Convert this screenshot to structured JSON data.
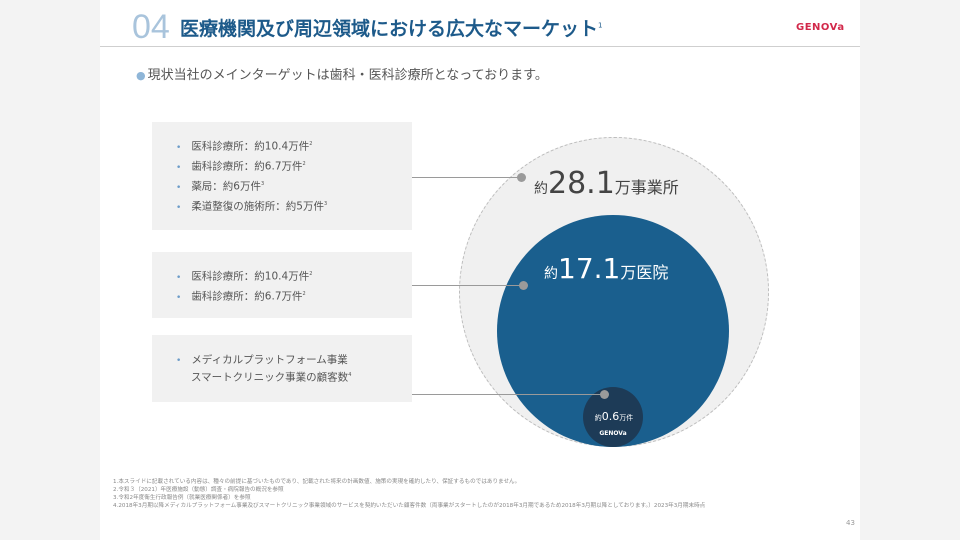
{
  "header": {
    "section_number": "04",
    "title": "医療機関及び周辺領域における広大なマーケット",
    "title_footnote": "1",
    "logo": "GENOVa"
  },
  "subtitle": "現状当社のメインターゲットは歯科・医科診療所となっております。",
  "boxes": [
    {
      "items": [
        {
          "text": "医科診療所：約10.4万件",
          "note": "2"
        },
        {
          "text": "歯科診療所：約6.7万件",
          "note": "2"
        },
        {
          "text": "薬局：約6万件",
          "note": "3"
        },
        {
          "text": "柔道整復の施術所：約5万件",
          "note": "3"
        }
      ]
    },
    {
      "items": [
        {
          "text": "医科診療所：約10.4万件",
          "note": "2"
        },
        {
          "text": "歯科診療所：約6.7万件",
          "note": "2"
        }
      ]
    },
    {
      "items": [
        {
          "line1": "メディカルプラットフォーム事業",
          "line2": "スマートクリニック事業の顧客数",
          "note": "4"
        }
      ]
    }
  ],
  "circles": {
    "outer": {
      "prefix": "約",
      "value": "28.1",
      "unit": "万事業所"
    },
    "middle": {
      "prefix": "約",
      "value": "17.1",
      "unit": "万医院"
    },
    "inner": {
      "prefix": "約",
      "value": "0.6",
      "unit": "万件",
      "logo": "GENOVa"
    },
    "colors": {
      "outer": "#f0f0f0",
      "middle": "#1a5f8e",
      "inner": "#1d3b57"
    }
  },
  "footnotes": [
    "1.本スライドに記載されている内容は、種々の前提に基づいたものであり、記載された将来の計画数値、施策の実現を確約したり、保証するものではありません。",
    "2.令和３（2021）年医療施設（動態）調査・病院報告の概況を参照",
    "3.令和2年度衛生行政報告例（就業医療関係者）を参照",
    "4.2018年3月期以降メディカルプラットフォーム事業及びスマートクリニック事業領域のサービスを契約いただいた顧客件数（両事業がスタートしたのが2018年3月期であるため2018年3月期以降としております。）2023年3月期末時点"
  ],
  "page_number": "43"
}
